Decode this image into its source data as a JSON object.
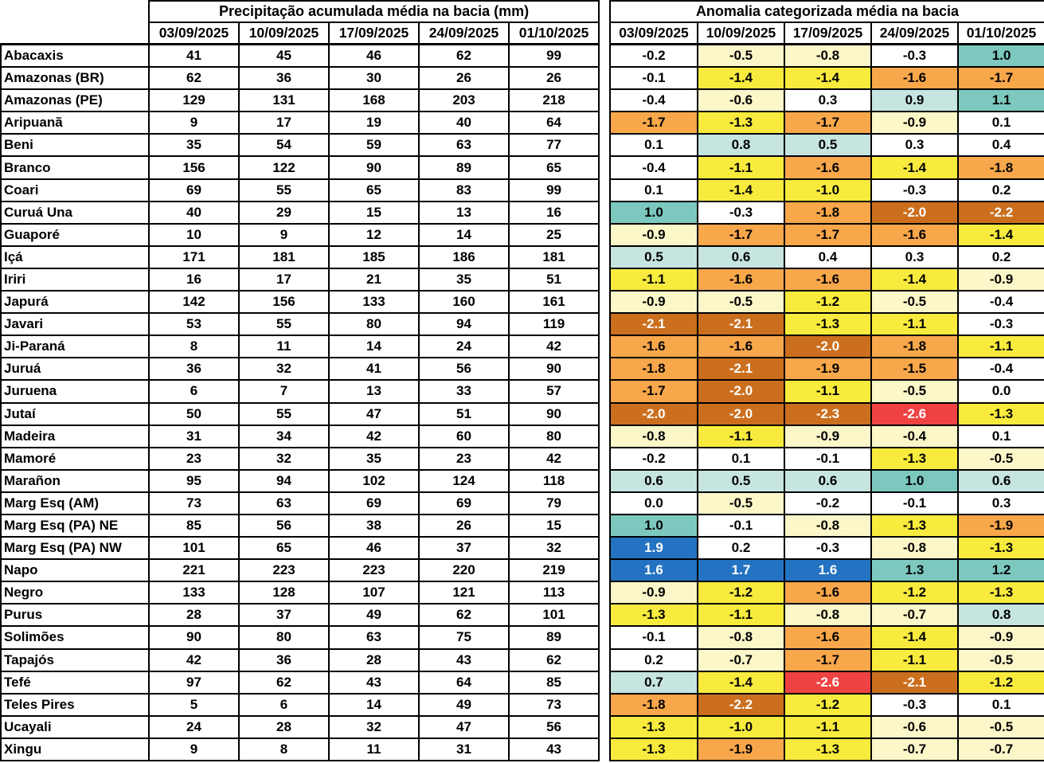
{
  "chart_data": [
    {
      "type": "table",
      "title": "Precipitação acumulada média na bacia (mm)",
      "columns": [
        "03/09/2025",
        "10/09/2025",
        "17/09/2025",
        "24/09/2025",
        "01/10/2025"
      ],
      "rows": [
        "Abacaxis",
        "Amazonas (BR)",
        "Amazonas (PE)",
        "Aripuanã",
        "Beni",
        "Branco",
        "Coari",
        "Curuá Una",
        "Guaporé",
        "Içá",
        "Iriri",
        "Japurá",
        "Javari",
        "Ji-Paraná",
        "Juruá",
        "Juruena",
        "Jutaí",
        "Madeira",
        "Mamoré",
        "Marañon",
        "Marg Esq (AM)",
        "Marg Esq (PA) NE",
        "Marg Esq (PA) NW",
        "Napo",
        "Negro",
        "Purus",
        "Solimões",
        "Tapajós",
        "Tefé",
        "Teles Pires",
        "Ucayali",
        "Xingu"
      ],
      "values": [
        [
          41,
          45,
          46,
          62,
          99
        ],
        [
          62,
          36,
          30,
          26,
          26
        ],
        [
          129,
          131,
          168,
          203,
          218
        ],
        [
          9,
          17,
          19,
          40,
          64
        ],
        [
          35,
          54,
          59,
          63,
          77
        ],
        [
          156,
          122,
          90,
          89,
          65
        ],
        [
          69,
          55,
          65,
          83,
          99
        ],
        [
          40,
          29,
          15,
          13,
          16
        ],
        [
          10,
          9,
          12,
          14,
          25
        ],
        [
          171,
          181,
          185,
          186,
          181
        ],
        [
          16,
          17,
          21,
          35,
          51
        ],
        [
          142,
          156,
          133,
          160,
          161
        ],
        [
          53,
          55,
          80,
          94,
          119
        ],
        [
          8,
          11,
          14,
          24,
          42
        ],
        [
          36,
          32,
          41,
          56,
          90
        ],
        [
          6,
          7,
          13,
          33,
          57
        ],
        [
          50,
          55,
          47,
          51,
          90
        ],
        [
          31,
          34,
          42,
          60,
          80
        ],
        [
          23,
          32,
          35,
          23,
          42
        ],
        [
          95,
          94,
          102,
          124,
          118
        ],
        [
          73,
          63,
          69,
          69,
          79
        ],
        [
          85,
          56,
          38,
          26,
          15
        ],
        [
          101,
          65,
          46,
          37,
          32
        ],
        [
          221,
          223,
          223,
          220,
          219
        ],
        [
          133,
          128,
          107,
          121,
          113
        ],
        [
          28,
          37,
          49,
          62,
          101
        ],
        [
          90,
          80,
          63,
          75,
          89
        ],
        [
          42,
          36,
          28,
          43,
          62
        ],
        [
          97,
          62,
          43,
          64,
          85
        ],
        [
          5,
          6,
          14,
          49,
          73
        ],
        [
          24,
          28,
          32,
          47,
          56
        ],
        [
          9,
          8,
          11,
          31,
          43
        ]
      ]
    },
    {
      "type": "heatmap",
      "title": "Anomalia categorizada média na bacia",
      "columns": [
        "03/09/2025",
        "10/09/2025",
        "17/09/2025",
        "24/09/2025",
        "01/10/2025"
      ],
      "rows": [
        "Abacaxis",
        "Amazonas (BR)",
        "Amazonas (PE)",
        "Aripuanã",
        "Beni",
        "Branco",
        "Coari",
        "Curuá Una",
        "Guaporé",
        "Içá",
        "Iriri",
        "Japurá",
        "Javari",
        "Ji-Paraná",
        "Juruá",
        "Juruena",
        "Jutaí",
        "Madeira",
        "Mamoré",
        "Marañon",
        "Marg Esq (AM)",
        "Marg Esq (PA) NE",
        "Marg Esq (PA) NW",
        "Napo",
        "Negro",
        "Purus",
        "Solimões",
        "Tapajós",
        "Tefé",
        "Teles Pires",
        "Ucayali",
        "Xingu"
      ],
      "values": [
        [
          -0.2,
          -0.5,
          -0.8,
          -0.3,
          1.0
        ],
        [
          -0.1,
          -1.4,
          -1.4,
          -1.6,
          -1.7
        ],
        [
          -0.4,
          -0.6,
          0.3,
          0.9,
          1.1
        ],
        [
          -1.7,
          -1.3,
          -1.7,
          -0.9,
          0.1
        ],
        [
          0.1,
          0.8,
          0.5,
          0.3,
          0.4
        ],
        [
          -0.4,
          -1.1,
          -1.6,
          -1.4,
          -1.8
        ],
        [
          0.1,
          -1.4,
          -1.0,
          -0.3,
          0.2
        ],
        [
          1.0,
          -0.3,
          -1.8,
          -2.0,
          -2.2
        ],
        [
          -0.9,
          -1.7,
          -1.7,
          -1.6,
          -1.4
        ],
        [
          0.5,
          0.6,
          0.4,
          0.3,
          0.2
        ],
        [
          -1.1,
          -1.6,
          -1.6,
          -1.4,
          -0.9
        ],
        [
          -0.9,
          -0.5,
          -1.2,
          -0.5,
          -0.4
        ],
        [
          -2.1,
          -2.1,
          -1.3,
          -1.1,
          -0.3
        ],
        [
          -1.6,
          -1.6,
          -2.0,
          -1.8,
          -1.1
        ],
        [
          -1.8,
          -2.1,
          -1.9,
          -1.5,
          -0.4
        ],
        [
          -1.7,
          -2.0,
          -1.1,
          -0.5,
          0.0
        ],
        [
          -2.0,
          -2.0,
          -2.3,
          -2.6,
          -1.3
        ],
        [
          -0.8,
          -1.1,
          -0.9,
          -0.4,
          0.1
        ],
        [
          -0.2,
          0.1,
          -0.1,
          -1.3,
          -0.5
        ],
        [
          0.6,
          0.5,
          0.6,
          1.0,
          0.6
        ],
        [
          0.0,
          -0.5,
          -0.2,
          -0.1,
          0.3
        ],
        [
          1.0,
          -0.1,
          -0.8,
          -1.3,
          -1.9
        ],
        [
          1.9,
          0.2,
          -0.3,
          -0.8,
          -1.3
        ],
        [
          1.6,
          1.7,
          1.6,
          1.3,
          1.2
        ],
        [
          -0.9,
          -1.2,
          -1.6,
          -1.2,
          -1.3
        ],
        [
          -1.3,
          -1.1,
          -0.8,
          -0.7,
          0.8
        ],
        [
          -0.1,
          -0.8,
          -1.6,
          -1.4,
          -0.9
        ],
        [
          0.2,
          -0.7,
          -1.7,
          -1.1,
          -0.5
        ],
        [
          0.7,
          -1.4,
          -2.6,
          -2.1,
          -1.2
        ],
        [
          -1.8,
          -2.2,
          -1.2,
          -0.3,
          0.1
        ],
        [
          -1.3,
          -1.0,
          -1.1,
          -0.6,
          -0.5
        ],
        [
          -1.3,
          -1.9,
          -1.3,
          -0.7,
          -0.7
        ]
      ],
      "cell_categories": [
        [
          "w",
          "c",
          "c",
          "w",
          "t"
        ],
        [
          "w",
          "y",
          "y",
          "o",
          "o"
        ],
        [
          "w",
          "c",
          "w",
          "lt",
          "t"
        ],
        [
          "o",
          "y",
          "o",
          "c",
          "w"
        ],
        [
          "w",
          "lt",
          "lt",
          "w",
          "w"
        ],
        [
          "w",
          "y",
          "o",
          "y",
          "o"
        ],
        [
          "w",
          "y",
          "y",
          "w",
          "w"
        ],
        [
          "t",
          "w",
          "o",
          "d",
          "d"
        ],
        [
          "c",
          "o",
          "o",
          "o",
          "y"
        ],
        [
          "lt",
          "lt",
          "w",
          "w",
          "w"
        ],
        [
          "y",
          "o",
          "o",
          "y",
          "c"
        ],
        [
          "c",
          "c",
          "y",
          "c",
          "w"
        ],
        [
          "d",
          "d",
          "y",
          "y",
          "w"
        ],
        [
          "o",
          "o",
          "d",
          "o",
          "y"
        ],
        [
          "o",
          "d",
          "o",
          "o",
          "w"
        ],
        [
          "o",
          "d",
          "y",
          "c",
          "w"
        ],
        [
          "d",
          "d",
          "d",
          "r",
          "y"
        ],
        [
          "c",
          "y",
          "c",
          "c",
          "w"
        ],
        [
          "w",
          "w",
          "w",
          "y",
          "c"
        ],
        [
          "lt",
          "lt",
          "lt",
          "t",
          "lt"
        ],
        [
          "w",
          "c",
          "w",
          "w",
          "w"
        ],
        [
          "t",
          "w",
          "c",
          "y",
          "o"
        ],
        [
          "b",
          "w",
          "w",
          "c",
          "y"
        ],
        [
          "b",
          "b",
          "b",
          "t",
          "t"
        ],
        [
          "c",
          "y",
          "o",
          "y",
          "y"
        ],
        [
          "y",
          "y",
          "c",
          "c",
          "lt"
        ],
        [
          "w",
          "c",
          "o",
          "y",
          "c"
        ],
        [
          "w",
          "c",
          "o",
          "y",
          "c"
        ],
        [
          "lt",
          "y",
          "r",
          "d",
          "y"
        ],
        [
          "o",
          "d",
          "y",
          "w",
          "w"
        ],
        [
          "y",
          "y",
          "y",
          "c",
          "c"
        ],
        [
          "y",
          "o",
          "y",
          "c",
          "c"
        ]
      ],
      "palette": {
        "w": {
          "bg": "#FFFFFF",
          "fg": "#000000"
        },
        "c": {
          "bg": "#FBF7C9",
          "fg": "#000000"
        },
        "y": {
          "bg": "#F8EB3E",
          "fg": "#000000"
        },
        "o": {
          "bg": "#F8A74B",
          "fg": "#000000"
        },
        "d": {
          "bg": "#CB6F1E",
          "fg": "#FFFFFF"
        },
        "r": {
          "bg": "#EF4343",
          "fg": "#FFFFFF"
        },
        "lt": {
          "bg": "#C6E4E0",
          "fg": "#000000"
        },
        "t": {
          "bg": "#7CC8BE",
          "fg": "#000000"
        },
        "b": {
          "bg": "#2473C2",
          "fg": "#FFFFFF"
        }
      }
    }
  ]
}
